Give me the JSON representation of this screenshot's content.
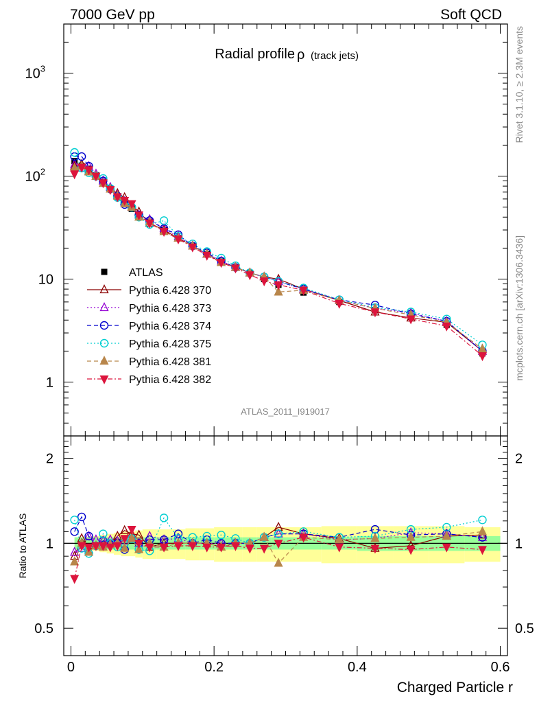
{
  "header": {
    "left": "7000 GeV pp",
    "right": "Soft QCD"
  },
  "side_labels": {
    "rivet": "Rivet 3.1.10, ≥ 2.3M events",
    "mcplots": "mcplots.cern.ch [arXiv:1306.3436]"
  },
  "chart_data": [
    {
      "type": "scatter",
      "title": "Radial profile",
      "title_symbol": "ρ",
      "title_suffix": "(track jets)",
      "watermark": "ATLAS_2011_I919017",
      "xlabel": "",
      "ylabel": "",
      "xlim": [
        -0.01,
        0.61
      ],
      "ylim": [
        0.3,
        3000
      ],
      "yscale": "log",
      "y_ticks": [
        {
          "value": 1,
          "label": "1"
        },
        {
          "value": 10,
          "label": "10"
        },
        {
          "value": 100,
          "label": "10",
          "sup": "2"
        },
        {
          "value": 1000,
          "label": "10",
          "sup": "3"
        }
      ],
      "legend_position": "left-center",
      "x": [
        0.005,
        0.015,
        0.025,
        0.035,
        0.045,
        0.055,
        0.065,
        0.075,
        0.085,
        0.095,
        0.11,
        0.13,
        0.15,
        0.17,
        0.19,
        0.21,
        0.23,
        0.25,
        0.27,
        0.29,
        0.325,
        0.375,
        0.425,
        0.475,
        0.525,
        0.575
      ],
      "series": [
        {
          "name": "ATLAS",
          "marker": "square-filled",
          "color": "#000000",
          "line": "none",
          "values": [
            140,
            125,
            118,
            102,
            88,
            76,
            64,
            56,
            48,
            42,
            36,
            30,
            25,
            21,
            17.5,
            15,
            13,
            11.5,
            10,
            8.8,
            7.4,
            6,
            5,
            4.3,
            3.6,
            1.9
          ]
        },
        {
          "name": "Pythia 6.428 370",
          "marker": "triangle-up-open",
          "color": "#8b0000",
          "line": "solid",
          "values": [
            125,
            130,
            112,
            100,
            90,
            75,
            68,
            62,
            52,
            45,
            35,
            30,
            25,
            21,
            17.5,
            14.5,
            13,
            11.5,
            10.5,
            10,
            8,
            6.2,
            4.8,
            4.2,
            3.8,
            2
          ]
        },
        {
          "name": "Pythia 6.428 373",
          "marker": "triangle-up-open",
          "color": "#9400d3",
          "line": "dotted",
          "values": [
            130,
            120,
            125,
            105,
            90,
            78,
            65,
            57,
            50,
            42,
            38,
            31,
            26,
            21,
            17.5,
            15,
            13,
            11.5,
            10.5,
            9.5,
            8,
            6.2,
            5.2,
            4.7,
            3.9,
            2
          ]
        },
        {
          "name": "Pythia 6.428 374",
          "marker": "circle-open",
          "color": "#0000cd",
          "line": "dashed",
          "values": [
            155,
            155,
            125,
            100,
            90,
            75,
            64,
            53,
            50,
            42,
            37,
            31,
            27,
            21,
            18,
            15,
            13,
            11.5,
            10.5,
            9.5,
            8,
            6.3,
            5.6,
            4.6,
            3.9,
            2
          ]
        },
        {
          "name": "Pythia 6.428 375",
          "marker": "circle-open",
          "color": "#00ced1",
          "line": "dotted",
          "values": [
            170,
            120,
            108,
            100,
            95,
            76,
            62,
            56,
            50,
            40,
            34,
            37,
            26,
            22,
            18.5,
            16,
            13.5,
            11.5,
            10.5,
            9.5,
            8.2,
            6.3,
            5.3,
            4.8,
            4.1,
            2.3
          ]
        },
        {
          "name": "Pythia 6.428 381",
          "marker": "triangle-up-filled",
          "color": "#b8864b",
          "line": "dashed",
          "values": [
            120,
            125,
            110,
            100,
            85,
            75,
            64,
            54,
            50,
            40,
            36,
            29,
            25,
            21,
            17.5,
            14.5,
            13,
            11.5,
            10.5,
            7.5,
            7.8,
            6.2,
            5.2,
            4.5,
            3.8,
            2.1
          ]
        },
        {
          "name": "Pythia 6.428 382",
          "marker": "triangle-down-filled",
          "color": "#dc143c",
          "line": "dashdot",
          "values": [
            105,
            122,
            115,
            100,
            86,
            74,
            63,
            58,
            54,
            42,
            35,
            29,
            24.5,
            20.5,
            17,
            14.5,
            12.8,
            11,
            9.6,
            8.8,
            7.8,
            5.8,
            4.8,
            4.1,
            3.5,
            1.8
          ]
        }
      ]
    },
    {
      "type": "scatter",
      "title": "",
      "xlabel": "Charged Particle r",
      "ylabel": "Ratio to ATLAS",
      "xlim": [
        -0.01,
        0.61
      ],
      "ylim": [
        0.4,
        2.4
      ],
      "yscale": "log",
      "y_ticks": [
        {
          "value": 0.5,
          "label": "0.5"
        },
        {
          "value": 1,
          "label": "1"
        },
        {
          "value": 2,
          "label": "2"
        }
      ],
      "x_ticks": [
        {
          "value": 0,
          "label": "0"
        },
        {
          "value": 0.2,
          "label": "0.2"
        },
        {
          "value": 0.4,
          "label": "0.4"
        },
        {
          "value": 0.6,
          "label": "0.6"
        }
      ],
      "reference_line": 1,
      "bands": {
        "yellow_color": "#ffff99",
        "green_color": "#99ff99",
        "edges": [
          0.005,
          0.02,
          0.03,
          0.04,
          0.05,
          0.06,
          0.07,
          0.08,
          0.09,
          0.1,
          0.12,
          0.14,
          0.16,
          0.18,
          0.2,
          0.22,
          0.24,
          0.26,
          0.28,
          0.3,
          0.35,
          0.4,
          0.45,
          0.5,
          0.55,
          0.6
        ],
        "green_half_width": [
          0.05,
          0.05,
          0.05,
          0.05,
          0.05,
          0.05,
          0.05,
          0.05,
          0.05,
          0.05,
          0.05,
          0.05,
          0.05,
          0.05,
          0.05,
          0.05,
          0.05,
          0.05,
          0.05,
          0.05,
          0.05,
          0.06,
          0.06,
          0.06,
          0.06
        ],
        "yellow_low": [
          0.95,
          0.95,
          0.94,
          0.93,
          0.92,
          0.91,
          0.9,
          0.9,
          0.89,
          0.88,
          0.88,
          0.88,
          0.87,
          0.87,
          0.86,
          0.86,
          0.86,
          0.86,
          0.86,
          0.86,
          0.85,
          0.85,
          0.85,
          0.85,
          0.86
        ],
        "yellow_high": [
          1.05,
          1.05,
          1.06,
          1.07,
          1.08,
          1.09,
          1.1,
          1.1,
          1.11,
          1.12,
          1.12,
          1.12,
          1.13,
          1.13,
          1.14,
          1.14,
          1.14,
          1.14,
          1.14,
          1.14,
          1.15,
          1.15,
          1.15,
          1.15,
          1.14
        ]
      },
      "x": [
        0.005,
        0.015,
        0.025,
        0.035,
        0.045,
        0.055,
        0.065,
        0.075,
        0.085,
        0.095,
        0.11,
        0.13,
        0.15,
        0.17,
        0.19,
        0.21,
        0.23,
        0.25,
        0.27,
        0.29,
        0.325,
        0.375,
        0.425,
        0.475,
        0.525,
        0.575
      ],
      "series": [
        {
          "name": "Pythia 6.428 370",
          "marker": "triangle-up-open",
          "color": "#8b0000",
          "line": "solid",
          "values": [
            0.9,
            1.04,
            0.95,
            0.98,
            1.02,
            0.99,
            1.06,
            1.11,
            1.08,
            1.07,
            0.97,
            1.0,
            1.0,
            1.0,
            1.0,
            0.97,
            1.0,
            1.0,
            1.05,
            1.14,
            1.08,
            1.04,
            0.96,
            0.98,
            1.06,
            1.07
          ]
        },
        {
          "name": "Pythia 6.428 373",
          "marker": "triangle-up-open",
          "color": "#9400d3",
          "line": "dotted",
          "values": [
            0.93,
            0.96,
            1.06,
            1.03,
            1.02,
            1.03,
            1.02,
            1.02,
            1.04,
            1.0,
            1.06,
            1.03,
            1.04,
            1.0,
            1.0,
            1.0,
            1.0,
            1.0,
            1.05,
            1.08,
            1.08,
            1.03,
            1.04,
            1.09,
            1.08,
            1.05
          ]
        },
        {
          "name": "Pythia 6.428 374",
          "marker": "circle-open",
          "color": "#0000cd",
          "line": "dashed",
          "values": [
            1.1,
            1.24,
            1.06,
            0.98,
            1.02,
            0.99,
            1.0,
            0.95,
            1.04,
            1.0,
            1.03,
            1.03,
            1.08,
            1.0,
            1.03,
            1.0,
            1.0,
            1.0,
            1.05,
            1.08,
            1.08,
            1.05,
            1.12,
            1.07,
            1.08,
            1.05
          ]
        },
        {
          "name": "Pythia 6.428 375",
          "marker": "circle-open",
          "color": "#00ced1",
          "line": "dotted",
          "values": [
            1.21,
            0.96,
            0.92,
            0.98,
            1.08,
            1.0,
            0.97,
            1.0,
            1.04,
            0.95,
            0.94,
            1.23,
            1.04,
            1.05,
            1.06,
            1.07,
            1.04,
            1.0,
            1.05,
            1.08,
            1.1,
            1.05,
            1.06,
            1.12,
            1.14,
            1.21
          ]
        },
        {
          "name": "Pythia 6.428 381",
          "marker": "triangle-up-filled",
          "color": "#b8864b",
          "line": "dashed",
          "values": [
            0.86,
            1.0,
            0.93,
            0.98,
            0.97,
            0.99,
            1.0,
            0.96,
            1.04,
            0.95,
            1.0,
            0.97,
            1.0,
            1.0,
            1.0,
            0.97,
            1.0,
            1.0,
            1.05,
            0.85,
            1.05,
            1.03,
            1.04,
            1.05,
            1.06,
            1.1
          ]
        },
        {
          "name": "Pythia 6.428 382",
          "marker": "triangle-down-filled",
          "color": "#dc143c",
          "line": "dashdot",
          "values": [
            0.75,
            0.98,
            0.97,
            0.98,
            0.98,
            0.97,
            0.98,
            1.04,
            1.12,
            1.0,
            0.97,
            0.97,
            0.98,
            0.98,
            0.97,
            0.97,
            0.98,
            0.96,
            0.96,
            1.0,
            1.05,
            0.97,
            0.96,
            0.95,
            0.97,
            0.95
          ]
        }
      ]
    }
  ]
}
